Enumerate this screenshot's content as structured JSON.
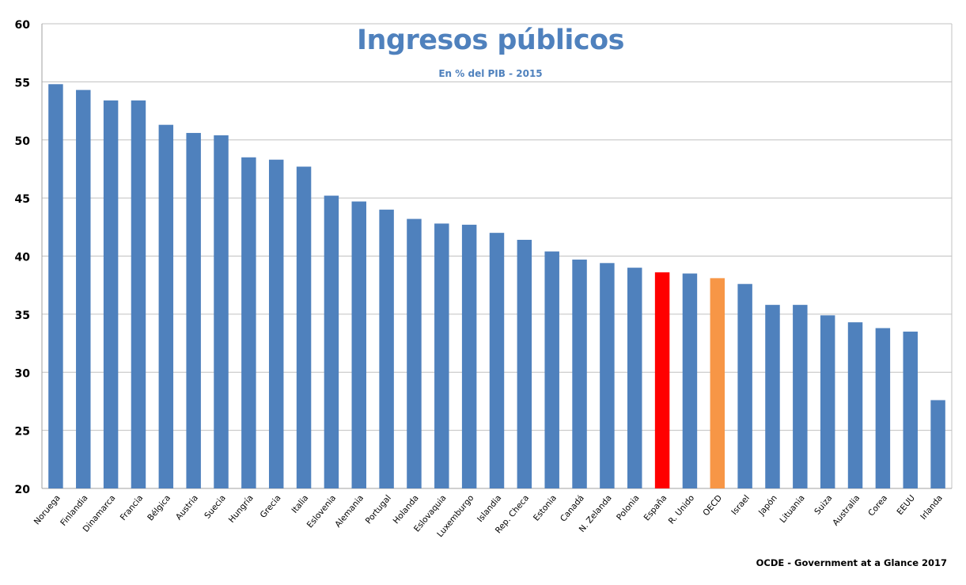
{
  "chart": {
    "title": "Ingresos públicos",
    "subtitle": "En % del PIB - 2015",
    "source": "OCDE - Government at a Glance 2017",
    "colors": {
      "default": "#4f81bd",
      "highlight_spain": "#ff0000",
      "highlight_oecd": "#f79646",
      "grid": "#c0c0c0"
    }
  },
  "chart_data": {
    "type": "bar",
    "title": "Ingresos públicos",
    "subtitle": "En % del PIB - 2015",
    "xlabel": "",
    "ylabel": "",
    "ylim": [
      20,
      60
    ],
    "yticks": [
      20,
      25,
      30,
      35,
      40,
      45,
      50,
      55,
      60
    ],
    "grid": true,
    "legend": "none",
    "annotations": [
      "OCDE - Government at a Glance 2017"
    ],
    "categories": [
      "Noruega",
      "Finlandia",
      "Dinamarca",
      "Francia",
      "Bélgica",
      "Austria",
      "Suecia",
      "Hungría",
      "Grecia",
      "Italia",
      "Eslovenia",
      "Alemania",
      "Portugal",
      "Holanda",
      "Eslovaquia",
      "Luxemburgo",
      "Islandia",
      "Rep. Checa",
      "Estonia",
      "Canadá",
      "N. Zelanda",
      "Polonia",
      "España",
      "R. Unido",
      "OECD",
      "Israel",
      "Japón",
      "Lituania",
      "Suiza",
      "Australia",
      "Corea",
      "EEUU",
      "Irlanda"
    ],
    "values": [
      54.8,
      54.3,
      53.4,
      53.4,
      51.3,
      50.6,
      50.4,
      48.5,
      48.3,
      47.7,
      45.2,
      44.7,
      44.0,
      43.2,
      42.8,
      42.7,
      42.0,
      41.4,
      40.4,
      39.7,
      39.4,
      39.0,
      38.6,
      38.5,
      38.1,
      37.6,
      35.8,
      35.8,
      34.9,
      34.3,
      33.8,
      33.5,
      27.6
    ],
    "highlights": {
      "España": "#ff0000",
      "OECD": "#f79646"
    }
  }
}
